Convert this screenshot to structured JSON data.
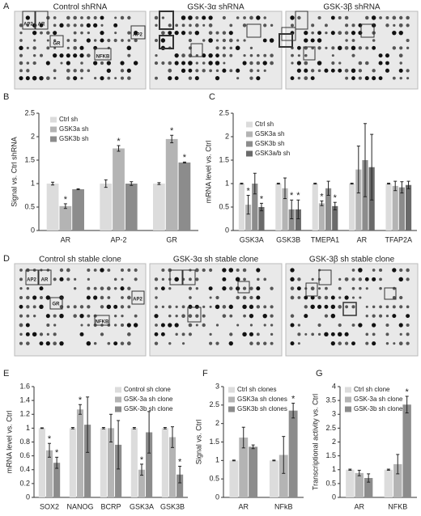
{
  "panels": {
    "A": {
      "letter": "A",
      "titles": [
        "Control shRNA",
        "GSK-3α shRNA",
        "GSK-3β shRNA"
      ],
      "labels": [
        "AP2",
        "AR",
        "GR",
        "NFKB",
        "AP2"
      ]
    },
    "D": {
      "letter": "D",
      "titles": [
        "Control sh stable clone",
        "GSK-3α sh stable clone",
        "GSK-3β sh stable clone"
      ],
      "labels": [
        "AP2",
        "AR",
        "GR",
        "NFKB",
        "AP2"
      ]
    }
  },
  "chart_data": [
    {
      "type": "bar",
      "panel": "B",
      "y_label": "Signal vs. Ctrl shRNA",
      "legend": "upper left",
      "categories": [
        "AR",
        "AP-2",
        "GR"
      ],
      "ylim": [
        0,
        2.5
      ],
      "yticks": [
        0,
        0.5,
        1,
        1.5,
        2,
        2.5
      ],
      "series": [
        {
          "name": "Ctrl sh",
          "color": "#dcdcdc",
          "values": [
            1.0,
            1.0,
            1.0
          ],
          "errors": [
            0.03,
            0.08,
            0.02
          ],
          "annotations": [
            null,
            null,
            null
          ]
        },
        {
          "name": "GSK3a sh",
          "color": "#b4b4b4",
          "values": [
            0.52,
            1.75,
            1.95
          ],
          "errors": [
            0.05,
            0.06,
            0.08
          ],
          "annotations": [
            "*",
            "*",
            "*"
          ]
        },
        {
          "name": "GSK3b sh",
          "color": "#8c8c8c",
          "values": [
            0.88,
            1.0,
            1.45
          ],
          "errors": [
            0.01,
            0.04,
            0.01
          ],
          "annotations": [
            null,
            null,
            "*"
          ]
        }
      ]
    },
    {
      "type": "bar",
      "panel": "C",
      "y_label": "mRNA level vs. Ctrl",
      "legend": "upper left",
      "categories": [
        "GSK3A",
        "GSK3B",
        "TMEPA1",
        "AR",
        "TFAP2A"
      ],
      "ylim": [
        0,
        2.5
      ],
      "yticks": [
        0,
        0.5,
        1,
        1.5,
        2,
        2.5
      ],
      "series": [
        {
          "name": "Ctrl sh",
          "color": "#dcdcdc",
          "values": [
            1.0,
            1.0,
            1.0,
            1.0,
            1.0
          ],
          "errors": [
            0.01,
            0.01,
            0.01,
            0.01,
            0.01
          ],
          "annotations": [
            null,
            null,
            null,
            null,
            null
          ]
        },
        {
          "name": "GSK3a sh",
          "color": "#b4b4b4",
          "values": [
            0.55,
            0.9,
            0.58,
            1.3,
            0.95
          ],
          "errors": [
            0.2,
            0.22,
            0.05,
            0.5,
            0.1
          ],
          "annotations": [
            "*",
            null,
            "*",
            null,
            null
          ]
        },
        {
          "name": "GSK3b sh",
          "color": "#8c8c8c",
          "values": [
            1.0,
            0.45,
            0.9,
            1.5,
            0.92
          ],
          "errors": [
            0.22,
            0.2,
            0.15,
            0.78,
            0.12
          ],
          "annotations": [
            null,
            "*",
            null,
            null,
            null
          ]
        },
        {
          "name": "GSK3a/b sh",
          "color": "#6a6a6a",
          "values": [
            0.5,
            0.45,
            0.52,
            1.35,
            0.97
          ],
          "errors": [
            0.08,
            0.2,
            0.08,
            0.7,
            0.08
          ],
          "annotations": [
            "*",
            "*",
            "*",
            null,
            null
          ]
        }
      ]
    },
    {
      "type": "bar",
      "panel": "E",
      "y_label": "mRNA level vs. Ctrl",
      "legend": "upper right",
      "categories": [
        "SOX2",
        "NANOG",
        "BCRP",
        "GSK3A",
        "GSK3B"
      ],
      "ylim": [
        0,
        1.6
      ],
      "yticks": [
        0,
        0.2,
        0.4,
        0.6,
        0.8,
        1,
        1.2,
        1.4,
        1.6
      ],
      "series": [
        {
          "name": "Control sh clone",
          "color": "#dcdcdc",
          "values": [
            1.0,
            1.0,
            1.0,
            1.0,
            1.0
          ],
          "errors": [
            0.005,
            0.01,
            0.01,
            0.01,
            0.01
          ],
          "annotations": [
            null,
            null,
            null,
            null,
            null
          ]
        },
        {
          "name": "GSK-3a sh clone",
          "color": "#b4b4b4",
          "values": [
            0.68,
            1.27,
            1.0,
            0.4,
            0.87
          ],
          "errors": [
            0.1,
            0.07,
            0.2,
            0.08,
            0.15
          ],
          "annotations": [
            "*",
            "*",
            null,
            "*",
            null
          ]
        },
        {
          "name": "GSK-3b sh clone",
          "color": "#8c8c8c",
          "values": [
            0.5,
            1.05,
            0.76,
            0.94,
            0.33
          ],
          "errors": [
            0.08,
            0.4,
            0.35,
            0.3,
            0.12
          ],
          "annotations": [
            "*",
            null,
            null,
            null,
            "*"
          ]
        }
      ]
    },
    {
      "type": "bar",
      "panel": "F",
      "y_label": "Signal vs. Ctrl",
      "legend": "upper left",
      "categories": [
        "AR",
        "NFkB"
      ],
      "ylim": [
        0,
        3
      ],
      "yticks": [
        0,
        0.5,
        1,
        1.5,
        2,
        2.5,
        3
      ],
      "series": [
        {
          "name": "Ctrl sh clones",
          "color": "#dcdcdc",
          "values": [
            1.0,
            1.0
          ],
          "errors": [
            0.01,
            0.01
          ],
          "annotations": [
            null,
            null
          ]
        },
        {
          "name": "GSK3a sh clones",
          "color": "#b4b4b4",
          "values": [
            1.62,
            1.15
          ],
          "errors": [
            0.28,
            0.5
          ],
          "annotations": [
            null,
            null
          ]
        },
        {
          "name": "GSK3b sh clones",
          "color": "#8c8c8c",
          "values": [
            1.37,
            2.35
          ],
          "errors": [
            0.05,
            0.2
          ],
          "annotations": [
            null,
            "*"
          ]
        }
      ]
    },
    {
      "type": "bar",
      "panel": "G",
      "y_label": "Transcriptional activity vs. Ctrl",
      "legend": "upper left",
      "categories": [
        "AR",
        "NFKB"
      ],
      "ylim": [
        0,
        4
      ],
      "yticks": [
        0,
        0.5,
        1,
        1.5,
        2,
        2.5,
        3,
        3.5,
        4
      ],
      "series": [
        {
          "name": "Ctrl sh clone",
          "color": "#dcdcdc",
          "values": [
            1.0,
            1.0
          ],
          "errors": [
            0.02,
            0.02
          ],
          "annotations": [
            null,
            null
          ]
        },
        {
          "name": "GSK-3a sh clone",
          "color": "#b4b4b4",
          "values": [
            0.88,
            1.2
          ],
          "errors": [
            0.1,
            0.35
          ],
          "annotations": [
            null,
            null
          ]
        },
        {
          "name": "GSK-3b sh clone",
          "color": "#8c8c8c",
          "values": [
            0.7,
            3.35
          ],
          "errors": [
            0.15,
            0.3
          ],
          "annotations": [
            null,
            "*"
          ]
        }
      ]
    }
  ]
}
